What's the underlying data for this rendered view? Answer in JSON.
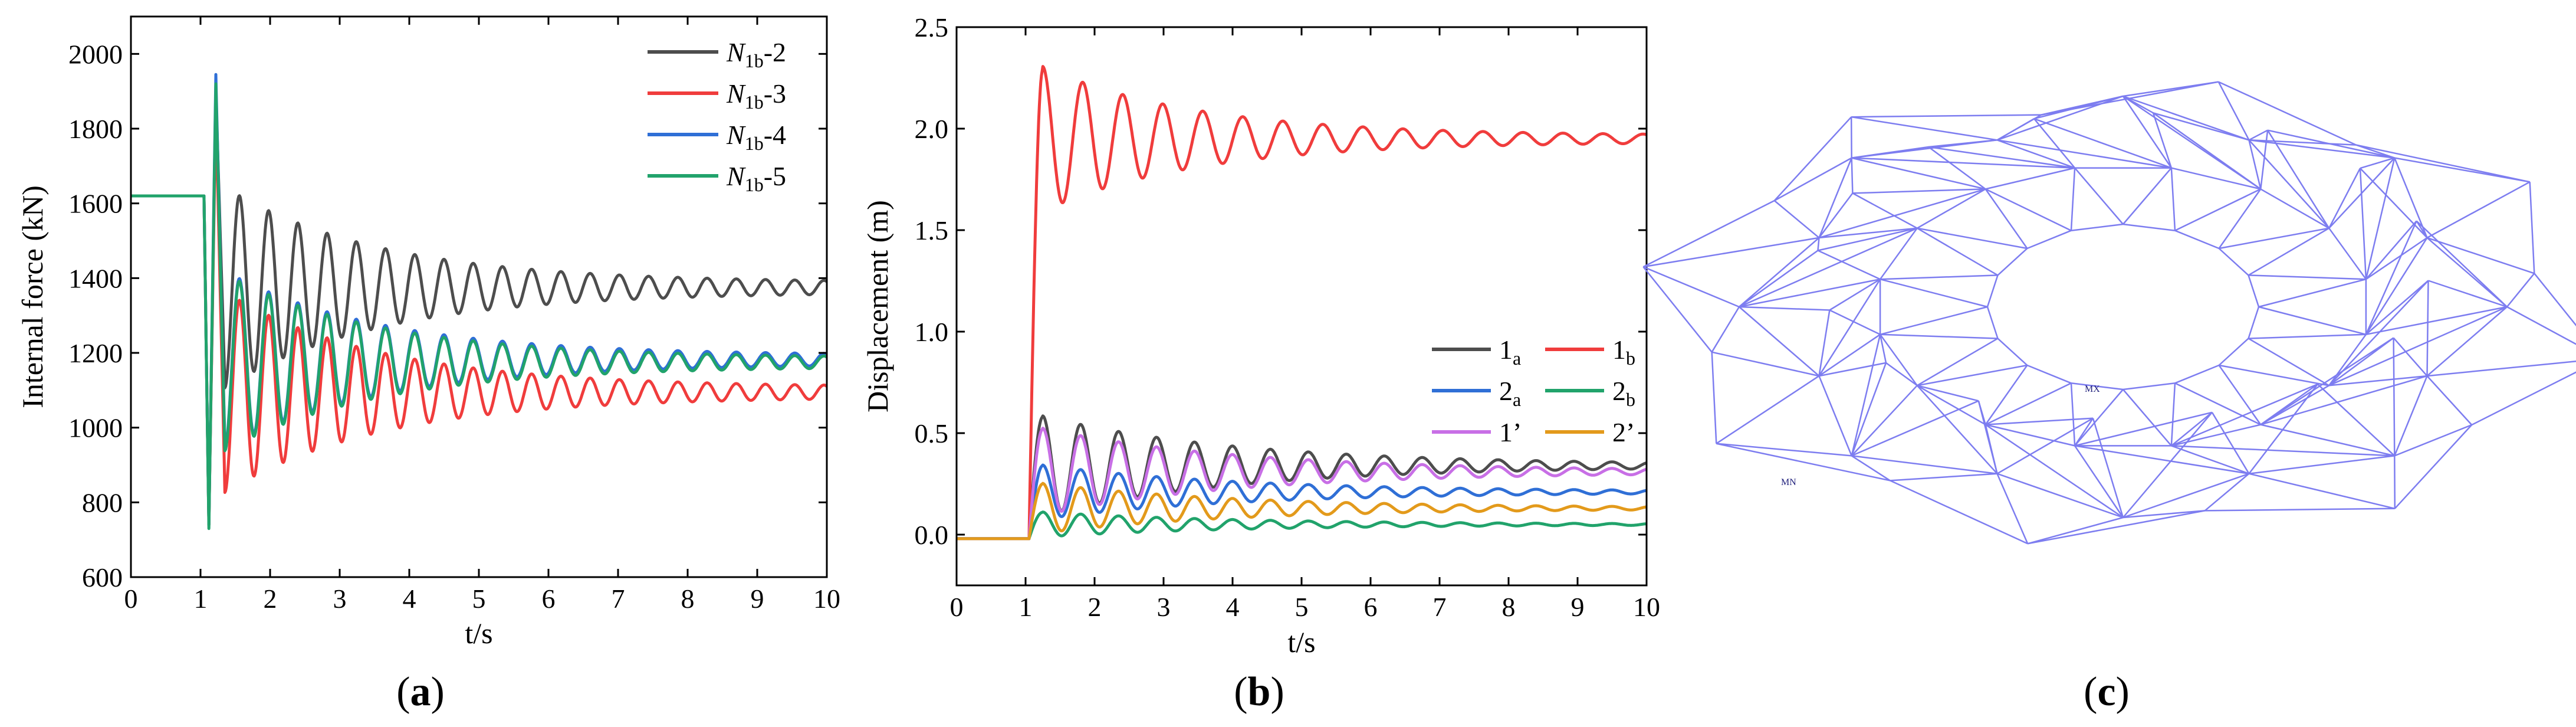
{
  "panel_labels": {
    "a_open": "(",
    "a": "a",
    "a_close": ")",
    "b_open": "(",
    "b": "b",
    "b_close": ")",
    "c_open": "(",
    "c": "c",
    "c_close": ")"
  },
  "chart_data": [
    {
      "type": "line",
      "panel": "a",
      "title": "",
      "xlabel": "t/s",
      "ylabel": "Internal force (kN)",
      "xlim": [
        0,
        10
      ],
      "ylim": [
        600,
        2100
      ],
      "xticks": [
        0,
        1,
        2,
        3,
        4,
        5,
        6,
        7,
        8,
        9,
        10
      ],
      "yticks": [
        600,
        800,
        1000,
        1200,
        1400,
        1600,
        1800,
        2000
      ],
      "legend_position": "top-right",
      "series": [
        {
          "name_main": "N",
          "name_sub": "1b",
          "name_suffix": "-2",
          "color": "#4d4d4d",
          "initial": 1620,
          "event_time": 1.05,
          "dip": 740,
          "peak": 1900,
          "final": 1375,
          "amplitude": 170,
          "decay": 0.45,
          "period": 0.42
        },
        {
          "name_main": "N",
          "name_sub": "1b",
          "name_suffix": "-3",
          "color": "#f03c3c",
          "initial": 1620,
          "event_time": 1.05,
          "dip": 740,
          "peak": 1860,
          "final": 1095,
          "amplitude": 170,
          "decay": 0.45,
          "period": 0.42
        },
        {
          "name_main": "N",
          "name_sub": "1b",
          "name_suffix": "-4",
          "color": "#2f6fd6",
          "initial": 1620,
          "event_time": 1.05,
          "dip": 740,
          "peak": 1945,
          "final": 1182,
          "amplitude": 150,
          "decay": 0.45,
          "period": 0.42
        },
        {
          "name_main": "N",
          "name_sub": "1b",
          "name_suffix": "-5",
          "color": "#21a36b",
          "initial": 1620,
          "event_time": 1.05,
          "dip": 730,
          "peak": 1920,
          "final": 1175,
          "amplitude": 150,
          "decay": 0.45,
          "period": 0.42
        }
      ]
    },
    {
      "type": "line",
      "panel": "b",
      "title": "",
      "xlabel": "t/s",
      "ylabel": "Displacement (m)",
      "xlim": [
        0,
        10
      ],
      "ylim": [
        -0.25,
        2.5
      ],
      "xticks": [
        0,
        1,
        2,
        3,
        4,
        5,
        6,
        7,
        8,
        9,
        10
      ],
      "yticks": [
        0.0,
        0.5,
        1.0,
        1.5,
        2.0,
        2.5
      ],
      "ytick_labels": [
        "0.0",
        "0.5",
        "1.0",
        "1.5",
        "2.0",
        "2.5"
      ],
      "legend_position": "right",
      "series": [
        {
          "name_main": "1",
          "name_sub": "a",
          "color": "#4d4d4d",
          "initial": -0.02,
          "event_time": 1.05,
          "peak": 0.58,
          "final": 0.34,
          "amplitude": 0.1,
          "decay": 0.35,
          "period": 0.55
        },
        {
          "name_main": "1",
          "name_sub": "b",
          "color": "#f03c3c",
          "initial": -0.02,
          "event_time": 1.05,
          "peak": 2.29,
          "final": 1.95,
          "amplitude": 0.33,
          "decay": 0.45,
          "period": 0.58
        },
        {
          "name_main": "2",
          "name_sub": "a",
          "color": "#2f6fd6",
          "initial": -0.02,
          "event_time": 1.05,
          "peak": 0.34,
          "final": 0.21,
          "amplitude": 0.06,
          "decay": 0.35,
          "period": 0.55
        },
        {
          "name_main": "2",
          "name_sub": "b",
          "color": "#21a36b",
          "initial": -0.02,
          "event_time": 1.05,
          "peak": 0.11,
          "final": 0.05,
          "amplitude": 0.03,
          "decay": 0.35,
          "period": 0.55
        },
        {
          "name_main": "1’",
          "name_sub": "",
          "color": "#c86fe6",
          "initial": -0.02,
          "event_time": 1.05,
          "peak": 0.52,
          "final": 0.31,
          "amplitude": 0.09,
          "decay": 0.35,
          "period": 0.55
        },
        {
          "name_main": "2’",
          "name_sub": "",
          "color": "#e39a1b",
          "initial": -0.02,
          "event_time": 1.05,
          "peak": 0.25,
          "final": 0.13,
          "amplitude": 0.05,
          "decay": 0.35,
          "period": 0.55
        }
      ]
    }
  ],
  "structure": {
    "color": "#7d7df0",
    "max_label": "MX",
    "min_label": "MN"
  }
}
